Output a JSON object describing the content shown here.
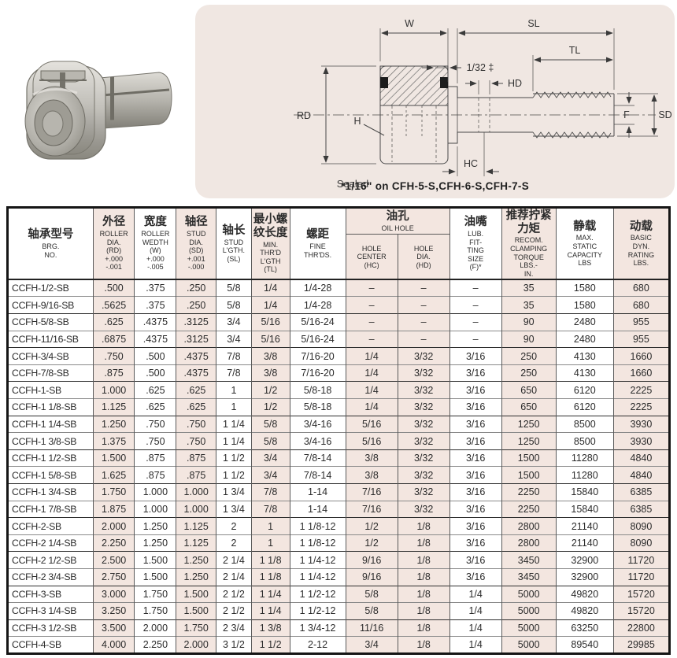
{
  "colors": {
    "panel_background": "#f0e7e2",
    "column_tint": "#f3e6e0",
    "line_color": "#3a3a3a"
  },
  "photo": {
    "description": "stud type cam follower bearing product photo"
  },
  "diagram": {
    "labels": {
      "w": "W",
      "sl": "SL",
      "tl": "TL",
      "gap": "1/32 ‡",
      "hd": "HD",
      "rd": "RD",
      "h": "H",
      "f": "F",
      "sd": "SD",
      "hc": "HC"
    },
    "sealed_label": "Sealed",
    "footnote": "*1/16\"  on CFH-5-S,CFH-6-S,CFH-7-S"
  },
  "table": {
    "header": {
      "brg_cjk": "轴承型号",
      "brg_en": "BRG.\nNO.",
      "rd_cjk": "外径",
      "rd_en": "ROLLER\nDIA.\n(RD)\n+.000\n-.001",
      "w_cjk": "宽度",
      "w_en": "ROLLER\nWEDTH\n(W)\n+.000\n-.005",
      "sd_cjk": "轴径",
      "sd_en": "STUD\nDIA.\n(SD)\n+.001\n-.000",
      "sl_cjk": "轴长",
      "sl_en": "STUD\nL'GTH.\n(SL)",
      "tl_cjk": "最小螺\n纹长度",
      "tl_en": "MIN.\nTHR'D\nL'GTH\n(TL)",
      "fine_cjk": "螺距",
      "fine_en": "FINE\nTHR'DS.",
      "oil_cjk": "油孔",
      "oil_en": "OIL HOLE",
      "hc_en": "HOLE\nCENTER\n(HC)",
      "hd_en": "HOLE\nDIA.\n(HD)",
      "lub_cjk": "油嘴",
      "lub_en": "LUB.\nFIT-\nTING\nSIZE\n(F)*",
      "torque_cjk": "推荐拧紧\n力矩",
      "torque_en": "RECOM.\nCLAMPING\nTORQUE\nLBS.-\nIN.",
      "static_cjk": "静载",
      "static_en": "MAX.\nSTATIC\nCAPACITY\nLBS",
      "dyn_cjk": "动载",
      "dyn_en": "BASIC\nDYN.\nRATING\nLBS."
    },
    "rows": [
      [
        "CCFH-1/2-SB",
        ".500",
        ".375",
        ".250",
        "5/8",
        "1/4",
        "1/4-28",
        "–",
        "–",
        "–",
        "35",
        "1580",
        "680"
      ],
      [
        "CCFH-9/16-SB",
        ".5625",
        ".375",
        ".250",
        "5/8",
        "1/4",
        "1/4-28",
        "–",
        "–",
        "–",
        "35",
        "1580",
        "680"
      ],
      [
        "CCFH-5/8-SB",
        ".625",
        ".4375",
        ".3125",
        "3/4",
        "5/16",
        "5/16-24",
        "–",
        "–",
        "–",
        "90",
        "2480",
        "955"
      ],
      [
        "CCFH-11/16-SB",
        ".6875",
        ".4375",
        ".3125",
        "3/4",
        "5/16",
        "5/16-24",
        "–",
        "–",
        "–",
        "90",
        "2480",
        "955"
      ],
      [
        "CCFH-3/4-SB",
        ".750",
        ".500",
        ".4375",
        "7/8",
        "3/8",
        "7/16-20",
        "1/4",
        "3/32",
        "3/16",
        "250",
        "4130",
        "1660"
      ],
      [
        "CCFH-7/8-SB",
        ".875",
        ".500",
        ".4375",
        "7/8",
        "3/8",
        "7/16-20",
        "1/4",
        "3/32",
        "3/16",
        "250",
        "4130",
        "1660"
      ],
      [
        "CCFH-1-SB",
        "1.000",
        ".625",
        ".625",
        "1",
        "1/2",
        "5/8-18",
        "1/4",
        "3/32",
        "3/16",
        "650",
        "6120",
        "2225"
      ],
      [
        "CCFH-1 1/8-SB",
        "1.125",
        ".625",
        ".625",
        "1",
        "1/2",
        "5/8-18",
        "1/4",
        "3/32",
        "3/16",
        "650",
        "6120",
        "2225"
      ],
      [
        "CCFH-1 1/4-SB",
        "1.250",
        ".750",
        ".750",
        "1 1/4",
        "5/8",
        "3/4-16",
        "5/16",
        "3/32",
        "3/16",
        "1250",
        "8500",
        "3930"
      ],
      [
        "CCFH-1 3/8-SB",
        "1.375",
        ".750",
        ".750",
        "1 1/4",
        "5/8",
        "3/4-16",
        "5/16",
        "3/32",
        "3/16",
        "1250",
        "8500",
        "3930"
      ],
      [
        "CCFH-1 1/2-SB",
        "1.500",
        ".875",
        ".875",
        "1 1/2",
        "3/4",
        "7/8-14",
        "3/8",
        "3/32",
        "3/16",
        "1500",
        "11280",
        "4840"
      ],
      [
        "CCFH-1 5/8-SB",
        "1.625",
        ".875",
        ".875",
        "1 1/2",
        "3/4",
        "7/8-14",
        "3/8",
        "3/32",
        "3/16",
        "1500",
        "11280",
        "4840"
      ],
      [
        "CCFH-1 3/4-SB",
        "1.750",
        "1.000",
        "1.000",
        "1 3/4",
        "7/8",
        "1-14",
        "7/16",
        "3/32",
        "3/16",
        "2250",
        "15840",
        "6385"
      ],
      [
        "CCFH-1 7/8-SB",
        "1.875",
        "1.000",
        "1.000",
        "1 3/4",
        "7/8",
        "1-14",
        "7/16",
        "3/32",
        "3/16",
        "2250",
        "15840",
        "6385"
      ],
      [
        "CCFH-2-SB",
        "2.000",
        "1.250",
        "1.125",
        "2",
        "1",
        "1 1/8-12",
        "1/2",
        "1/8",
        "3/16",
        "2800",
        "21140",
        "8090"
      ],
      [
        "CCFH-2 1/4-SB",
        "2.250",
        "1.250",
        "1.125",
        "2",
        "1",
        "1 1/8-12",
        "1/2",
        "1/8",
        "3/16",
        "2800",
        "21140",
        "8090"
      ],
      [
        "CCFH-2 1/2-SB",
        "2.500",
        "1.500",
        "1.250",
        "2 1/4",
        "1 1/8",
        "1 1/4-12",
        "9/16",
        "1/8",
        "3/16",
        "3450",
        "32900",
        "11720"
      ],
      [
        "CCFH-2 3/4-SB",
        "2.750",
        "1.500",
        "1.250",
        "2 1/4",
        "1 1/8",
        "1 1/4-12",
        "9/16",
        "1/8",
        "3/16",
        "3450",
        "32900",
        "11720"
      ],
      [
        "CCFH-3-SB",
        "3.000",
        "1.750",
        "1.500",
        "2 1/2",
        "1 1/4",
        "1 1/2-12",
        "5/8",
        "1/8",
        "1/4",
        "5000",
        "49820",
        "15720"
      ],
      [
        "CCFH-3 1/4-SB",
        "3.250",
        "1.750",
        "1.500",
        "2 1/2",
        "1 1/4",
        "1 1/2-12",
        "5/8",
        "1/8",
        "1/4",
        "5000",
        "49820",
        "15720"
      ],
      [
        "CCFH-3 1/2-SB",
        "3.500",
        "2.000",
        "1.750",
        "2 3/4",
        "1 3/8",
        "1 3/4-12",
        "11/16",
        "1/8",
        "1/4",
        "5000",
        "63250",
        "22800"
      ],
      [
        "CCFH-4-SB",
        "4.000",
        "2.250",
        "2.000",
        "3 1/2",
        "1 1/2",
        "2-12",
        "3/4",
        "1/8",
        "1/4",
        "5000",
        "89540",
        "29985"
      ]
    ]
  }
}
